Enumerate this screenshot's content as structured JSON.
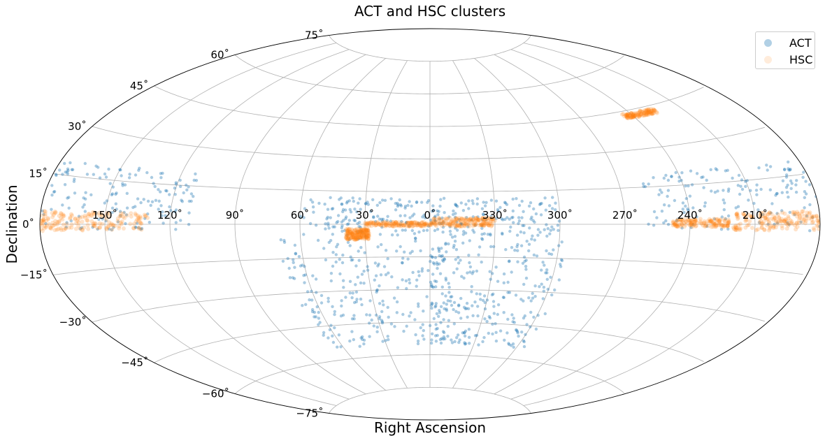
{
  "chart_data": {
    "type": "scatter",
    "projection": "aitoff",
    "title": "ACT and HSC clusters",
    "xlabel": "Right Ascension",
    "ylabel": "Declination",
    "x_ticks": [
      "150˚",
      "120˚",
      "90˚",
      "60˚",
      "30˚",
      "0˚",
      "330˚",
      "300˚",
      "270˚",
      "240˚",
      "210˚"
    ],
    "x_tick_values": [
      150,
      120,
      90,
      60,
      30,
      0,
      330,
      300,
      270,
      240,
      210
    ],
    "y_ticks": [
      "75˚",
      "60˚",
      "45˚",
      "30˚",
      "15˚",
      "0˚",
      "−15˚",
      "−30˚",
      "−45˚",
      "−60˚",
      "−75˚"
    ],
    "y_tick_values": [
      75,
      60,
      45,
      30,
      15,
      0,
      -15,
      -30,
      -45,
      -60,
      -75
    ],
    "grid": true,
    "legend_position": "top-right",
    "series": [
      {
        "name": "ACT",
        "color": "#1f77b4",
        "regions": [
          {
            "ra": [
              -5,
              60
            ],
            "dec": [
              -5,
              12
            ],
            "density": 0.55
          },
          {
            "ra": [
              300,
              360
            ],
            "dec": [
              -5,
              12
            ],
            "density": 0.55
          },
          {
            "ra": [
              -10,
              70
            ],
            "dec": [
              -55,
              -5
            ],
            "density": 1.0
          },
          {
            "ra": [
              295,
              360
            ],
            "dec": [
              -55,
              -5
            ],
            "density": 1.0
          },
          {
            "ra": [
              110,
              180
            ],
            "dec": [
              -2,
              20
            ],
            "density": 0.6
          },
          {
            "ra": [
              180,
              260
            ],
            "dec": [
              -2,
              20
            ],
            "density": 0.6
          }
        ]
      },
      {
        "name": "HSC",
        "color": "#ff7f0e",
        "regions": [
          {
            "ra": [
              130,
              180
            ],
            "dec": [
              -2,
              4
            ],
            "density": 1.0
          },
          {
            "ra": [
              180,
              220
            ],
            "dec": [
              -2,
              4
            ],
            "density": 1.0
          },
          {
            "ra": [
              330,
              360
            ],
            "dec": [
              -1,
              3
            ],
            "density": 1.0
          },
          {
            "ra": [
              0,
              30
            ],
            "dec": [
              -1,
              1
            ],
            "density": 0.8
          },
          {
            "ra": [
              28,
              39
            ],
            "dec": [
              -7,
              -2
            ],
            "density": 1.0
          },
          {
            "ra": [
              222,
              248
            ],
            "dec": [
              -1,
              2
            ],
            "density": 0.8
          },
          {
            "ra": [
              245,
              225
            ],
            "dec": [
              42,
              44
            ],
            "density": 0.7
          }
        ]
      }
    ]
  }
}
